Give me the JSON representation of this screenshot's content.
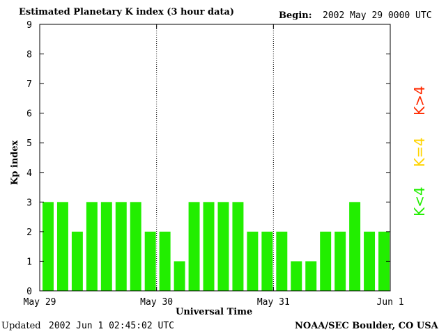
{
  "header": {
    "title": "Estimated Planetary K index (3 hour data)",
    "begin_label": "Begin:",
    "begin_date": "2002 May 29 0000 UTC"
  },
  "footer": {
    "updated_label": "Updated",
    "updated_date": "2002 Jun  1 02:45:02 UTC",
    "credit": "NOAA/SEC Boulder, CO USA"
  },
  "legend": {
    "high": {
      "label": "K>4",
      "color": "#ff2a00"
    },
    "equal": {
      "label": "K=4",
      "color": "#ffd400"
    },
    "low": {
      "label": "K<4",
      "color": "#22ee00"
    }
  },
  "chart_data": {
    "type": "bar",
    "title": "Estimated Planetary K index (3 hour data)",
    "xlabel": "Universal Time",
    "ylabel": "Kp index",
    "ylim": [
      0,
      9
    ],
    "yticks": [
      "0",
      "1",
      "2",
      "3",
      "4",
      "5",
      "6",
      "7",
      "8",
      "9"
    ],
    "xticks": [
      "May 29",
      "May 30",
      "May 31",
      "Jun 1"
    ],
    "day_dividers": true,
    "bar_color": "#22ee00",
    "values": [
      3,
      3,
      2,
      3,
      3,
      3,
      3,
      2,
      2,
      1,
      3,
      3,
      3,
      3,
      2,
      2,
      2,
      1,
      1,
      2,
      2,
      3,
      2,
      2
    ]
  }
}
